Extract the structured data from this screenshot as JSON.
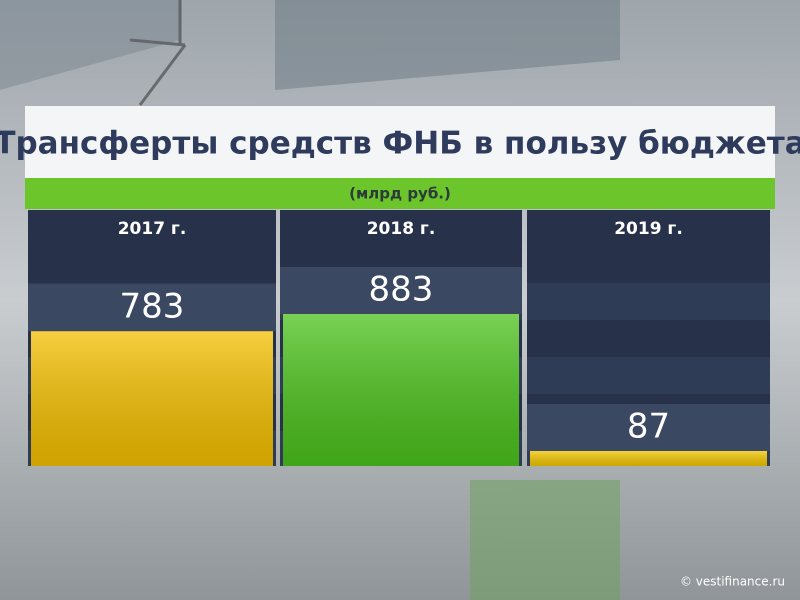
{
  "chart_data": {
    "type": "bar",
    "title": "Трансферты средств ФНБ в пользу бюджета",
    "subtitle": "(млрд руб.)",
    "categories": [
      "2017 г.",
      "2018 г.",
      "2019 г."
    ],
    "values": [
      783,
      883,
      87
    ],
    "colors": [
      "#f4bf00",
      "#4cc21c",
      "#f2c600"
    ],
    "source": "© vestifinance.ru"
  }
}
